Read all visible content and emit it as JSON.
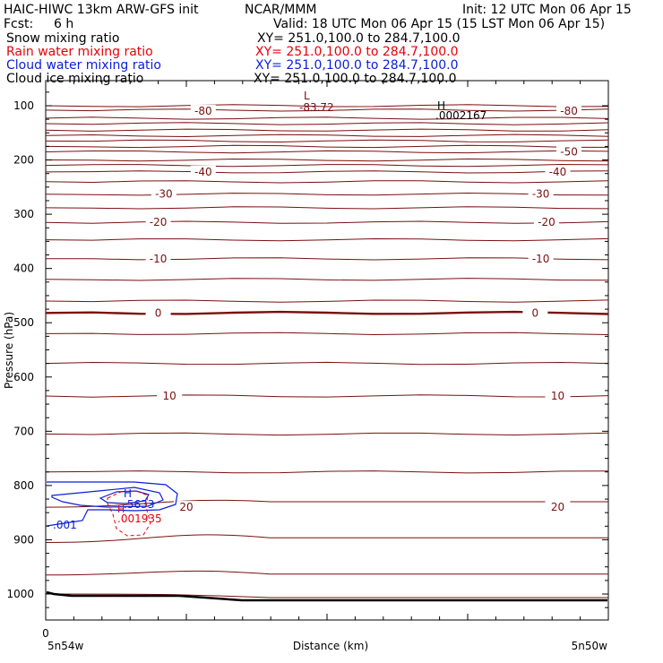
{
  "header": {
    "line1_left": "HAIC-HIWC 13km ARW-GFS init",
    "line1_center": "NCAR/MMM",
    "line1_right": "Init: 12 UTC Mon 06 Apr 15",
    "fcst_label": "Fcst:",
    "fcst_value": "6 h",
    "valid": "Valid: 18 UTC Mon 06 Apr 15 (15 LST Mon 06 Apr 15)"
  },
  "fields": [
    {
      "name": "Snow mixing ratio",
      "xy": "XY= 251.0,100.0 to 284.7,100.0",
      "color": "#000000"
    },
    {
      "name": "Rain water mixing ratio",
      "xy": "XY= 251.0,100.0 to 284.7,100.0",
      "color": "#e8000b"
    },
    {
      "name": "Cloud water mixing ratio",
      "xy": "XY= 251.0,100.0 to 284.7,100.0",
      "color": "#0a1fd6"
    },
    {
      "name": "Cloud ice mixing ratio",
      "xy": "XY= 251.0,100.0 to 284.7,100.0",
      "color": "#000000"
    }
  ],
  "colors": {
    "temperature": "#7a0f0f",
    "rain": "#e8000b",
    "cloud_water": "#0a1fd6",
    "terrain": "#000000"
  },
  "chart_data": {
    "type": "cross-section contour",
    "ylabel": "Pressure (hPa)",
    "xlabel": "Distance (km)",
    "ylim": [
      1050,
      60
    ],
    "xlim": [
      0,
      1
    ],
    "y_ticks": [
      100,
      200,
      300,
      400,
      500,
      600,
      700,
      800,
      900,
      1000
    ],
    "x_tick_label": "0",
    "x_end_labels": {
      "left": "5n54w",
      "right": "5n50w"
    },
    "isotherms": [
      {
        "label": "-80",
        "p": 110,
        "labels_at": [
          0.28,
          0.93
        ]
      },
      {
        "label": "-50",
        "p": 185,
        "labels_at": [
          0.93
        ]
      },
      {
        "label": "-40",
        "p": 222,
        "labels_at": [
          0.28,
          0.91
        ]
      },
      {
        "label": "-30",
        "p": 263,
        "labels_at": [
          0.21,
          0.88
        ]
      },
      {
        "label": "-20",
        "p": 315,
        "labels_at": [
          0.2,
          0.89
        ]
      },
      {
        "label": "-10",
        "p": 382,
        "labels_at": [
          0.2,
          0.88
        ]
      },
      {
        "label": "0",
        "p": 482,
        "labels_at": [
          0.2,
          0.87
        ]
      },
      {
        "label": "10",
        "p": 635,
        "labels_at": [
          0.22,
          0.91
        ]
      },
      {
        "label": "20",
        "p": 840,
        "labels_at": [
          0.25,
          0.91
        ]
      }
    ],
    "extrema": [
      {
        "kind": "L",
        "value": "-83.72",
        "x": 0.48,
        "p": 100
      },
      {
        "kind": "H",
        "value": ".0002167",
        "x": 0.71,
        "p": 100
      }
    ],
    "cloud_water": {
      "contour_label": ".001",
      "max_label": "H",
      "max_value": ".5633"
    },
    "rain": {
      "max_label": "H",
      "max_value": ".001935"
    }
  }
}
